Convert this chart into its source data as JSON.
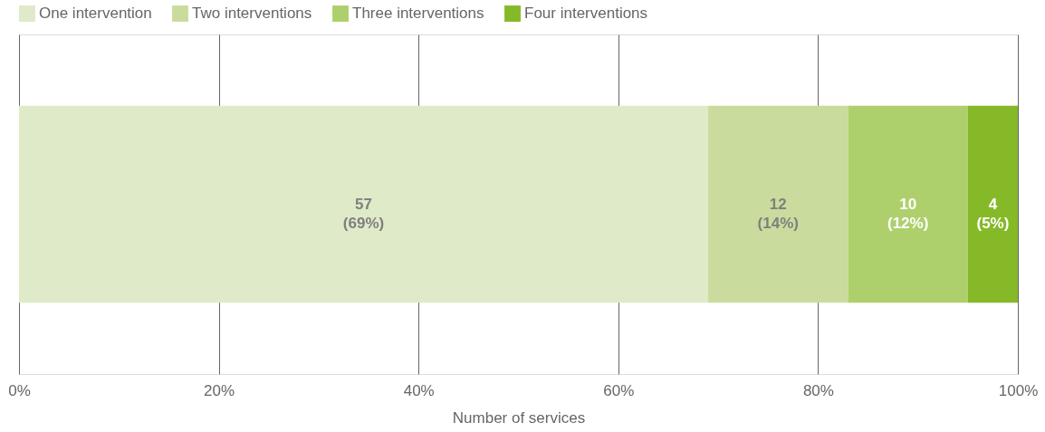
{
  "chart_data": {
    "type": "bar",
    "orientation": "horizontal",
    "stacked": true,
    "categories": [
      null
    ],
    "series": [
      {
        "name": "One intervention",
        "color": "#dfeac8",
        "values": [
          69
        ],
        "value_labels": [
          "57\n(69%)"
        ]
      },
      {
        "name": "Two interventions",
        "color": "#c9dc9e",
        "values": [
          14
        ],
        "value_labels": [
          "12\n(14%)"
        ]
      },
      {
        "name": "Three interventions",
        "color": "#aed06c",
        "values": [
          12
        ],
        "value_labels": [
          "10\n(12%)"
        ]
      },
      {
        "name": "Four interventions",
        "color": "#86b928",
        "values": [
          5
        ],
        "value_labels": [
          "4\n(5%)"
        ]
      }
    ],
    "xlim": [
      0,
      100
    ],
    "xticks": [
      {
        "value": 0,
        "label": "0%"
      },
      {
        "value": 20,
        "label": "20%"
      },
      {
        "value": 40,
        "label": "40%"
      },
      {
        "value": 60,
        "label": "60%"
      },
      {
        "value": 80,
        "label": "80%"
      },
      {
        "value": 100,
        "label": "100%"
      }
    ],
    "xlabel": "Number of services",
    "grid": "x",
    "legend": "top left",
    "tick_labels": "x"
  }
}
